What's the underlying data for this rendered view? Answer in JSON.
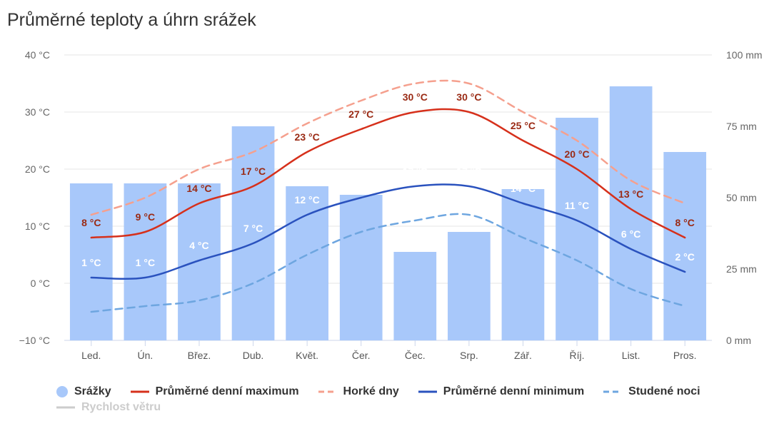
{
  "title": "Průměrné teploty a úhrn srážek",
  "chart_data": {
    "type": "bar+line",
    "categories": [
      "Led.",
      "Ún.",
      "Břez.",
      "Dub.",
      "Květ.",
      "Čer.",
      "Čec.",
      "Srp.",
      "Zář.",
      "Říj.",
      "List.",
      "Pros."
    ],
    "y_left": {
      "unit": "°C",
      "min": -10,
      "max": 40,
      "ticks": [
        "40 °C",
        "30 °C",
        "20 °C",
        "10 °C",
        "0 °C",
        "−10 °C"
      ]
    },
    "y_right": {
      "unit": "mm",
      "min": 0,
      "max": 100,
      "ticks": [
        "100 mm",
        "75 mm",
        "50 mm",
        "25 mm",
        "0 mm"
      ]
    },
    "grid": true,
    "legend_position": "bottom",
    "series": [
      {
        "name": "Srážky",
        "type": "bar",
        "axis": "right",
        "color": "#a8c8fa",
        "values": [
          55,
          55,
          55,
          75,
          54,
          51,
          31,
          38,
          53,
          78,
          89,
          66
        ]
      },
      {
        "name": "Průměrné denní maximum",
        "type": "line",
        "axis": "left",
        "color": "#d6301b",
        "label_color": "#9a2a14",
        "values": [
          8,
          9,
          14,
          17,
          23,
          27,
          30,
          30,
          25,
          20,
          13,
          8
        ],
        "labels": [
          "8 °C",
          "9 °C",
          "14 °C",
          "17 °C",
          "23 °C",
          "27 °C",
          "30 °C",
          "30 °C",
          "25 °C",
          "20 °C",
          "13 °C",
          "8 °C"
        ]
      },
      {
        "name": "Horké dny",
        "type": "line",
        "axis": "left",
        "color": "#f5a08e",
        "dash": "dashed",
        "values": [
          12,
          15,
          20,
          23,
          28,
          32,
          35,
          35,
          30,
          25,
          18,
          14
        ]
      },
      {
        "name": "Průměrné denní minimum",
        "type": "line",
        "axis": "left",
        "color": "#2a52be",
        "label_color": "#ffffff",
        "values": [
          1,
          1,
          4,
          7,
          12,
          15,
          17,
          17,
          14,
          11,
          6,
          2
        ],
        "labels": [
          "1 °C",
          "1 °C",
          "4 °C",
          "7 °C",
          "12 °C",
          "15 °C",
          "17 °C",
          "17 °C",
          "14 °C",
          "11 °C",
          "6 °C",
          "2 °C"
        ]
      },
      {
        "name": "Studené noci",
        "type": "line",
        "axis": "left",
        "color": "#6ea6e0",
        "dash": "dashed",
        "values": [
          -5,
          -4,
          -3,
          0,
          5,
          9,
          11,
          12,
          8,
          4,
          -1,
          -4
        ]
      }
    ],
    "legend": [
      {
        "label": "Srážky",
        "symbol": "circle",
        "color": "#a8c8fa"
      },
      {
        "label": "Průměrné denní maximum",
        "symbol": "line",
        "color": "#d6301b"
      },
      {
        "label": "Horké dny",
        "symbol": "dashed-line",
        "color": "#f5a08e"
      },
      {
        "label": "Průměrné denní minimum",
        "symbol": "line",
        "color": "#2a52be"
      },
      {
        "label": "Studené noci",
        "symbol": "dashed-line",
        "color": "#6ea6e0"
      },
      {
        "label": "Rychlost větru",
        "symbol": "line",
        "color": "#cccccc",
        "hidden": true
      }
    ]
  }
}
